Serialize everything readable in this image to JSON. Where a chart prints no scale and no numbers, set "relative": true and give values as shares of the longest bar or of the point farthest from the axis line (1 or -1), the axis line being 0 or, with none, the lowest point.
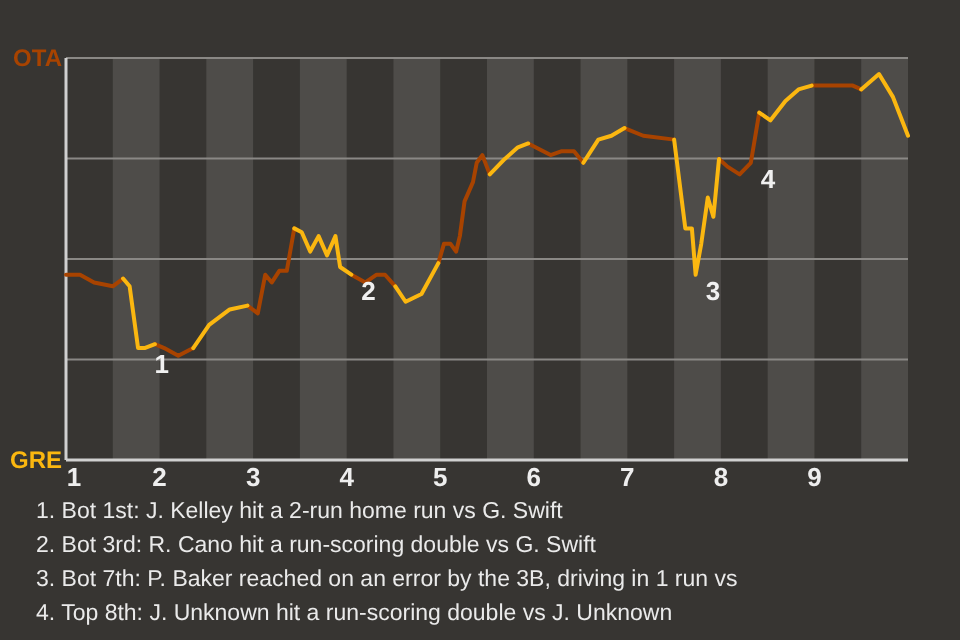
{
  "chart_data": {
    "type": "line",
    "relative": true,
    "xlim": [
      1,
      10
    ],
    "xticks": [
      1,
      2,
      3,
      4,
      5,
      6,
      7,
      8,
      9
    ],
    "grid": "y",
    "legend": "left",
    "line_style": "solid",
    "bands": [
      {
        "axis": "x",
        "from": 1.5,
        "to": 2,
        "color": "#4e4c49"
      },
      {
        "axis": "x",
        "from": 2.5,
        "to": 3,
        "color": "#4e4c49"
      },
      {
        "axis": "x",
        "from": 3.5,
        "to": 4,
        "color": "#4e4c49"
      },
      {
        "axis": "x",
        "from": 4.5,
        "to": 5,
        "color": "#4e4c49"
      },
      {
        "axis": "x",
        "from": 5.5,
        "to": 6,
        "color": "#4e4c49"
      },
      {
        "axis": "x",
        "from": 6.5,
        "to": 7,
        "color": "#4e4c49"
      },
      {
        "axis": "x",
        "from": 7.5,
        "to": 8,
        "color": "#4e4c49"
      },
      {
        "axis": "x",
        "from": 8.5,
        "to": 9,
        "color": "#4e4c49"
      },
      {
        "axis": "x",
        "from": 9.5,
        "to": 10,
        "color": "#4e4c49"
      }
    ],
    "series": [
      {
        "name": "OTA",
        "color": "#a84300",
        "x": [
          1,
          1.15,
          1.3,
          1.5,
          1.61,
          null,
          1.95,
          2.05,
          2.2,
          2.36,
          null,
          2.94,
          3.05,
          3.13,
          3.2,
          3.28,
          3.36,
          3.44,
          null,
          4.05,
          4.2,
          4.32,
          4.41,
          4.52,
          null,
          4.98,
          5.04,
          5.11,
          5.17,
          5.21,
          5.26,
          5.35,
          5.39,
          5.45,
          5.53,
          null,
          5.94,
          6.18,
          6.3,
          6.43,
          6.53,
          null,
          6.97,
          7.17,
          7.5,
          null,
          7.98,
          8.07,
          8.2,
          8.32,
          8.41,
          null,
          8.97,
          9.12,
          9.26,
          9.41,
          9.5
        ],
        "values": [
          0.48,
          0.48,
          0.46,
          0.45,
          0.47,
          null,
          0.3,
          0.29,
          0.27,
          0.29,
          null,
          0.4,
          0.38,
          0.48,
          0.46,
          0.49,
          0.49,
          0.6,
          null,
          0.48,
          0.46,
          0.48,
          0.48,
          0.45,
          null,
          0.51,
          0.56,
          0.56,
          0.54,
          0.58,
          0.67,
          0.72,
          0.77,
          0.79,
          0.74,
          null,
          0.82,
          0.79,
          0.8,
          0.8,
          0.77,
          null,
          0.86,
          0.84,
          0.83,
          null,
          0.78,
          0.76,
          0.74,
          0.77,
          0.9,
          null,
          0.97,
          0.97,
          0.97,
          0.97,
          0.96
        ]
      },
      {
        "name": "GRE",
        "color": "#fbb710",
        "x": [
          1.61,
          1.68,
          1.77,
          1.84,
          1.95,
          null,
          2.36,
          2.53,
          2.75,
          2.94,
          null,
          3.44,
          3.52,
          3.61,
          3.7,
          3.79,
          3.88,
          3.93,
          4.05,
          null,
          4.52,
          4.63,
          4.8,
          4.98,
          null,
          5.53,
          5.69,
          5.83,
          5.94,
          null,
          6.53,
          6.69,
          6.83,
          6.97,
          null,
          7.5,
          7.62,
          7.69,
          7.73,
          7.79,
          7.86,
          7.92,
          7.98,
          null,
          8.41,
          8.53,
          8.69,
          8.83,
          8.97,
          null,
          9.5,
          9.69,
          9.84,
          10
        ],
        "values": [
          0.47,
          0.45,
          0.29,
          0.29,
          0.3,
          null,
          0.29,
          0.35,
          0.39,
          0.4,
          null,
          0.6,
          0.59,
          0.54,
          0.58,
          0.53,
          0.58,
          0.5,
          0.48,
          null,
          0.45,
          0.41,
          0.43,
          0.51,
          null,
          0.74,
          0.78,
          0.81,
          0.82,
          null,
          0.77,
          0.83,
          0.84,
          0.86,
          null,
          0.83,
          0.6,
          0.6,
          0.48,
          0.56,
          0.68,
          0.63,
          0.78,
          null,
          0.9,
          0.88,
          0.93,
          0.96,
          0.97,
          null,
          0.96,
          1,
          0.94,
          0.84
        ]
      }
    ],
    "annotations": [
      {
        "text": "1",
        "x": 1.84,
        "y": 0.29
      },
      {
        "text": "2",
        "x": 4.05,
        "y": 0.48
      },
      {
        "text": "3",
        "x": 7.73,
        "y": 0.48
      },
      {
        "text": "4",
        "x": 8.32,
        "y": 0.77
      },
      "1. Bot 1st: J. Kelley hit a 2-run home run vs G. Swift",
      "2. Bot 3rd: R. Cano hit a run-scoring double vs G. Swift",
      "3. Bot 7th: P. Baker reached on an error by the 3B, driving in 1 run vs",
      "4. Top 8th: J. Unknown hit a run-scoring double vs J. Unknown"
    ]
  }
}
